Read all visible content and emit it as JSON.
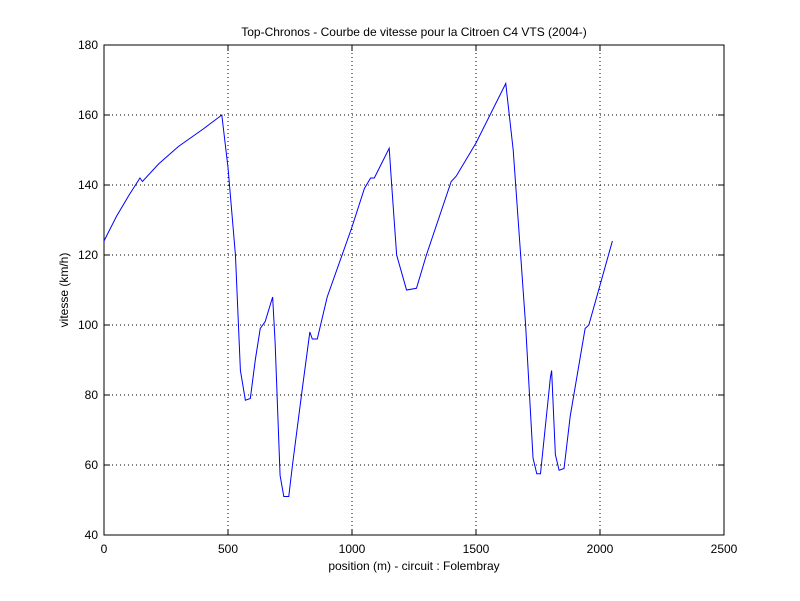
{
  "chart_data": {
    "type": "line",
    "title": "Top-Chronos - Courbe de vitesse pour la Citroen C4 VTS (2004-)",
    "x_label": "position (m) - circuit : Folembray",
    "y_label": "vitesse (km/h)",
    "x": [
      0,
      50,
      100,
      145,
      155,
      220,
      300,
      400,
      475,
      500,
      530,
      550,
      570,
      590,
      610,
      630,
      650,
      680,
      690,
      710,
      725,
      745,
      760,
      800,
      830,
      840,
      860,
      900,
      1000,
      1050,
      1075,
      1090,
      1150,
      1160,
      1180,
      1220,
      1260,
      1300,
      1400,
      1420,
      1500,
      1620,
      1650,
      1700,
      1730,
      1745,
      1760,
      1800,
      1805,
      1820,
      1835,
      1855,
      1880,
      1940,
      1955,
      2050
    ],
    "values": [
      124,
      131,
      137,
      142,
      141,
      146,
      151,
      156,
      160,
      145,
      120,
      87,
      78.5,
      79,
      90,
      99,
      101,
      108,
      95,
      57,
      51,
      51,
      60,
      82,
      98,
      96,
      96,
      108,
      128,
      139,
      142,
      142,
      150.5,
      140,
      120,
      110,
      110.5,
      120,
      141,
      142.5,
      152,
      169,
      150,
      100,
      62,
      57.5,
      57.5,
      85,
      87,
      63,
      58.5,
      59,
      74,
      99,
      100,
      124
    ],
    "color": "#0000ff",
    "xlim": [
      0,
      2500
    ],
    "xticks": [
      0,
      500,
      1000,
      1500,
      2000,
      2500
    ],
    "ylim": [
      40,
      180
    ],
    "yticks": [
      40,
      60,
      80,
      100,
      120,
      140,
      160,
      180
    ],
    "grid": true
  }
}
